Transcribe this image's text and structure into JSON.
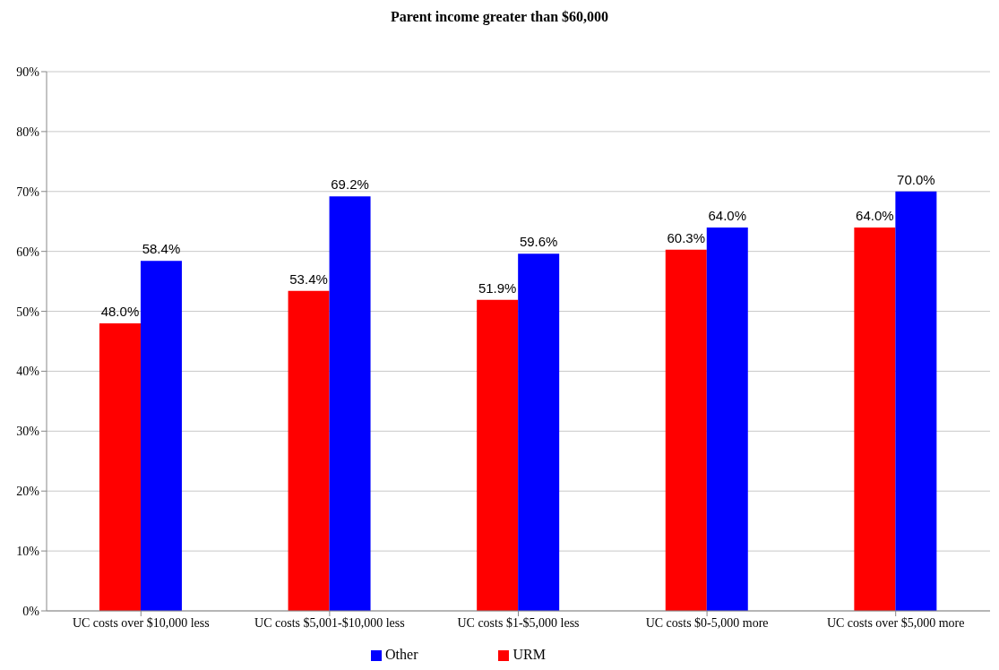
{
  "chart_data": {
    "type": "bar",
    "title": "Parent income greater than $60,000",
    "categories": [
      "UC costs over $10,000 less",
      "UC costs $5,001-$10,000 less",
      "UC costs $1-$5,000 less",
      "UC costs $0-5,000 more",
      "UC costs over $5,000 more"
    ],
    "series": [
      {
        "name": "URM",
        "color": "#ff0000",
        "values": [
          48.0,
          53.4,
          51.9,
          60.3,
          64.0
        ],
        "value_labels": [
          "48.0%",
          "53.4%",
          "51.9%",
          "60.3%",
          "64.0%"
        ]
      },
      {
        "name": "Other",
        "color": "#0000ff",
        "values": [
          58.4,
          69.2,
          59.6,
          64.0,
          70.0
        ],
        "value_labels": [
          "58.4%",
          "69.2%",
          "59.6%",
          "64.0%",
          "70.0%"
        ]
      }
    ],
    "ylim": [
      0,
      90
    ],
    "yticks": [
      {
        "value": 0,
        "label": "0%"
      },
      {
        "value": 10,
        "label": "10%"
      },
      {
        "value": 20,
        "label": "20%"
      },
      {
        "value": 30,
        "label": "30%"
      },
      {
        "value": 40,
        "label": "40%"
      },
      {
        "value": 50,
        "label": "50%"
      },
      {
        "value": 60,
        "label": "60%"
      },
      {
        "value": 70,
        "label": "70%"
      },
      {
        "value": 80,
        "label": "80%"
      },
      {
        "value": 90,
        "label": "90%"
      }
    ],
    "grid": "y",
    "legend": "bottom"
  }
}
